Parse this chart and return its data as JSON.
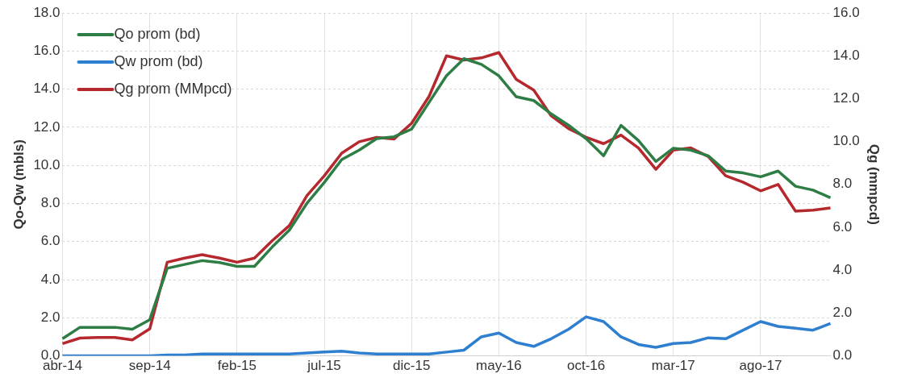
{
  "chart_data": {
    "type": "line",
    "categories": [
      "abr-14",
      null,
      null,
      null,
      null,
      "sep-14",
      null,
      null,
      null,
      null,
      "feb-15",
      null,
      null,
      null,
      null,
      "jul-15",
      null,
      null,
      null,
      null,
      "dic-15",
      null,
      null,
      null,
      null,
      "may-16",
      null,
      null,
      null,
      null,
      "oct-16",
      null,
      null,
      null,
      null,
      "mar-17",
      null,
      null,
      null,
      null,
      "ago-17",
      null,
      null,
      null,
      null
    ],
    "series": [
      {
        "name": "Qo prom (bd)",
        "color": "#2e7d45",
        "values": [
          0.9,
          1.5,
          1.5,
          1.5,
          1.4,
          1.9,
          4.6,
          4.8,
          5.0,
          4.9,
          4.7,
          4.7,
          5.7,
          6.6,
          8.0,
          9.1,
          10.3,
          10.8,
          11.4,
          11.5,
          11.9,
          13.3,
          14.7,
          15.6,
          15.3,
          14.7,
          13.6,
          13.4,
          12.7,
          12.1,
          11.4,
          10.5,
          12.1,
          11.3,
          10.2,
          10.9,
          10.8,
          10.5,
          9.7,
          9.6,
          9.4,
          9.7,
          8.9,
          8.7,
          8.3
        ]
      },
      {
        "name": "Qw prom (bd)",
        "color": "#2f7fd0",
        "values": [
          0.0,
          0.0,
          0.0,
          0.0,
          0.0,
          0.0,
          0.05,
          0.05,
          0.1,
          0.1,
          0.1,
          0.1,
          0.1,
          0.1,
          0.15,
          0.2,
          0.25,
          0.15,
          0.1,
          0.1,
          0.1,
          0.1,
          0.2,
          0.3,
          1.0,
          1.2,
          0.7,
          0.5,
          0.9,
          1.4,
          2.05,
          1.8,
          1.0,
          0.6,
          0.45,
          0.65,
          0.7,
          0.95,
          0.9,
          1.35,
          1.8,
          1.55,
          1.45,
          1.35,
          1.7
        ]
      },
      {
        "name": "Qg prom (MMpcd)",
        "color": "#b5282e",
        "axis": "y2",
        "values": [
          0.57,
          0.83,
          0.86,
          0.86,
          0.75,
          1.26,
          4.37,
          4.56,
          4.72,
          4.56,
          4.37,
          4.56,
          5.36,
          6.08,
          7.47,
          8.4,
          9.46,
          9.99,
          10.19,
          10.12,
          10.85,
          12.1,
          14.0,
          13.8,
          13.9,
          14.15,
          12.9,
          12.4,
          11.2,
          10.6,
          10.2,
          9.9,
          10.3,
          9.7,
          8.7,
          9.6,
          9.7,
          9.3,
          8.4,
          8.1,
          7.7,
          8.0,
          6.75,
          6.8,
          6.9
        ]
      }
    ],
    "ylabel": "Qo-Qw (mbls)",
    "y2label": "Qg (mmpcd)",
    "ylim": [
      0,
      18
    ],
    "yticks": [
      {
        "value": 0,
        "label": "0.0"
      },
      {
        "value": 2,
        "label": "2.0"
      },
      {
        "value": 4,
        "label": "4.0"
      },
      {
        "value": 6,
        "label": "6.0"
      },
      {
        "value": 8,
        "label": "8.0"
      },
      {
        "value": 10,
        "label": "10.0"
      },
      {
        "value": 12,
        "label": "12.0"
      },
      {
        "value": 14,
        "label": "14.0"
      },
      {
        "value": 16,
        "label": "16.0"
      },
      {
        "value": 18,
        "label": "18.0"
      }
    ],
    "y2lim": [
      0,
      16
    ],
    "y2ticks": [
      {
        "value": 0,
        "label": "0.0"
      },
      {
        "value": 2,
        "label": "2.0"
      },
      {
        "value": 4,
        "label": "4.0"
      },
      {
        "value": 6,
        "label": "6.0"
      },
      {
        "value": 8,
        "label": "8.0"
      },
      {
        "value": 10,
        "label": "10.0"
      },
      {
        "value": 12,
        "label": "12.0"
      },
      {
        "value": 14,
        "label": "14.0"
      },
      {
        "value": 16,
        "label": "16.0"
      }
    ],
    "grid": true,
    "legend": "top left",
    "marker": "none",
    "line_style": "solid"
  }
}
